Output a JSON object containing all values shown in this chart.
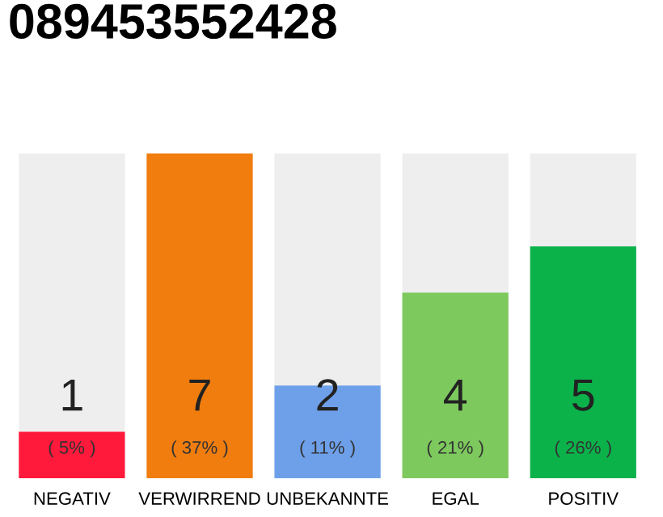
{
  "chart_data": {
    "type": "bar",
    "title": "089453552428",
    "categories": [
      "NEGATIV",
      "VERWIRREND",
      "UNBEKANNTE",
      "EGAL",
      "POSITIV"
    ],
    "values": [
      1,
      7,
      2,
      4,
      5
    ],
    "colors": [
      "#ff1a3c",
      "#f07d0e",
      "#6ea0ea",
      "#7dc95e",
      "#0bb24a"
    ],
    "ylim": [
      0,
      7
    ],
    "data_labels": true,
    "annotations": [
      "( 5% )",
      "( 37% )",
      "( 11% )",
      "( 21% )",
      "( 26% )"
    ],
    "grid": false,
    "legend": false
  }
}
